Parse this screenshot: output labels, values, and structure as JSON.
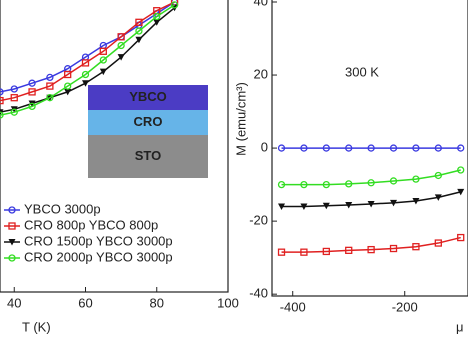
{
  "chart_data": [
    {
      "type": "line",
      "x_label": "T (K)",
      "x": [
        36,
        40,
        45,
        50,
        55,
        60,
        65,
        70,
        75,
        80,
        85
      ],
      "xlim": [
        36,
        100
      ],
      "xticks": [
        40,
        60,
        80,
        100
      ],
      "ylim": [
        0,
        1
      ],
      "inset_layers": [
        "YBCO",
        "CRO",
        "STO"
      ],
      "legend": "lower left",
      "series": [
        {
          "name": "YBCO 3000p",
          "color": "#3a3ae0",
          "marker": "circle",
          "values": [
            0.69,
            0.7,
            0.72,
            0.74,
            0.77,
            0.81,
            0.85,
            0.88,
            0.92,
            0.96,
            1.0
          ]
        },
        {
          "name": "CRO 800p YBCO 800p",
          "color": "#e02020",
          "marker": "square",
          "values": [
            0.66,
            0.67,
            0.69,
            0.71,
            0.75,
            0.79,
            0.83,
            0.88,
            0.93,
            0.97,
            1.0
          ]
        },
        {
          "name": "CRO 1500p YBCO 3000p",
          "color": "#111111",
          "marker": "triangle",
          "values": [
            0.62,
            0.63,
            0.65,
            0.67,
            0.69,
            0.72,
            0.76,
            0.81,
            0.87,
            0.93,
            0.98
          ]
        },
        {
          "name": "CRO 2000p YBCO 3000p",
          "color": "#33dd22",
          "marker": "circle",
          "values": [
            0.61,
            0.62,
            0.64,
            0.67,
            0.71,
            0.75,
            0.8,
            0.85,
            0.9,
            0.95,
            0.99
          ]
        }
      ]
    },
    {
      "type": "line",
      "y_label": "M (emu/cm³)",
      "x_label": "μ",
      "annotation": "300 K",
      "x": [
        -420,
        -380,
        -340,
        -300,
        -260,
        -220,
        -180,
        -140,
        -100
      ],
      "xlim": [
        -437,
        -87
      ],
      "xticks": [
        -400,
        -200
      ],
      "ylim": [
        -40.5,
        40
      ],
      "yticks": [
        -40,
        -20,
        0,
        20,
        40
      ],
      "series": [
        {
          "color": "#3a3ae0",
          "marker": "circle",
          "values": [
            0,
            0,
            0,
            0,
            0,
            0,
            0,
            0,
            0
          ]
        },
        {
          "color": "#33dd22",
          "marker": "circle",
          "values": [
            -10,
            -10,
            -10,
            -9.8,
            -9.5,
            -9,
            -8.5,
            -7.5,
            -6
          ]
        },
        {
          "color": "#111111",
          "marker": "triangle",
          "values": [
            -16,
            -16,
            -15.8,
            -15.6,
            -15.3,
            -15,
            -14.5,
            -13.5,
            -12
          ]
        },
        {
          "color": "#e02020",
          "marker": "square",
          "values": [
            -28.5,
            -28.5,
            -28.3,
            -28,
            -27.8,
            -27.5,
            -27,
            -26,
            -24.5
          ]
        }
      ]
    }
  ]
}
